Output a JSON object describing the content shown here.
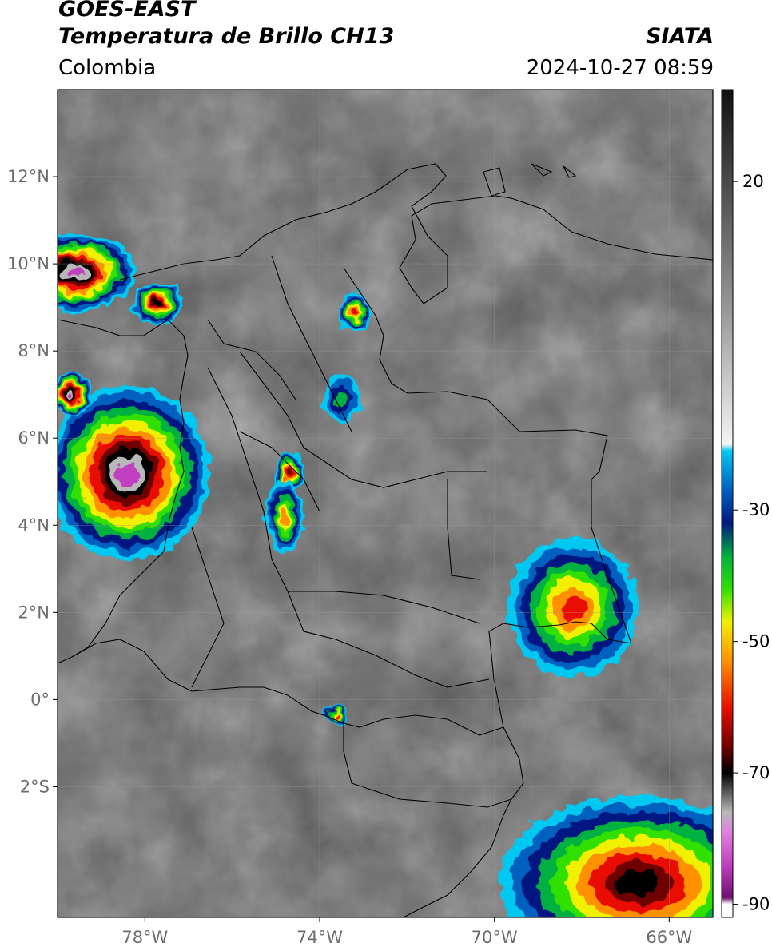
{
  "header": {
    "satellite": "GOES-EAST",
    "product": "Temperatura de Brillo CH13",
    "region": "Colombia",
    "organization": "SIATA",
    "timestamp": "2024-10-27 08:59"
  },
  "map": {
    "lon_range": [
      -80,
      -65
    ],
    "lat_range": [
      -5,
      14
    ],
    "lat_ticks": [
      {
        "value": 12,
        "label": "12°N"
      },
      {
        "value": 10,
        "label": "10°N"
      },
      {
        "value": 8,
        "label": "8°N"
      },
      {
        "value": 6,
        "label": "6°N"
      },
      {
        "value": 4,
        "label": "4°N"
      },
      {
        "value": 2,
        "label": "2°N"
      },
      {
        "value": 0,
        "label": "0°"
      },
      {
        "value": -2,
        "label": "2°S"
      }
    ],
    "lon_ticks": [
      {
        "value": -78,
        "label": "78°W"
      },
      {
        "value": -74,
        "label": "74°W"
      },
      {
        "value": -70,
        "label": "70°W"
      },
      {
        "value": -66,
        "label": "66°W"
      }
    ],
    "grid": true
  },
  "colorbar": {
    "range": [
      -92,
      34
    ],
    "ticks": [
      {
        "value": 20,
        "label": "20"
      },
      {
        "value": -30,
        "label": "-30"
      },
      {
        "value": -50,
        "label": "-50"
      },
      {
        "value": -70,
        "label": "-70"
      },
      {
        "value": -90,
        "label": "-90"
      }
    ],
    "stops": [
      {
        "t": 34,
        "color": "#111111"
      },
      {
        "t": 0,
        "color": "#9a9a9a"
      },
      {
        "t": -20,
        "color": "#f4f4f4"
      },
      {
        "t": -21,
        "color": "#00c8f0"
      },
      {
        "t": -27,
        "color": "#0060c0"
      },
      {
        "t": -32,
        "color": "#001880"
      },
      {
        "t": -37,
        "color": "#00b040"
      },
      {
        "t": -42,
        "color": "#30e000"
      },
      {
        "t": -47,
        "color": "#f0f000"
      },
      {
        "t": -53,
        "color": "#ff9000"
      },
      {
        "t": -60,
        "color": "#e81000"
      },
      {
        "t": -66,
        "color": "#700000"
      },
      {
        "t": -70,
        "color": "#000000"
      },
      {
        "t": -76,
        "color": "#b8b8b8"
      },
      {
        "t": -79,
        "color": "#e080e0"
      },
      {
        "t": -84,
        "color": "#c040c0"
      },
      {
        "t": -89,
        "color": "#701070"
      },
      {
        "t": -90,
        "color": "#ffffff"
      },
      {
        "t": -92,
        "color": "#ffffff"
      }
    ]
  },
  "storms": [
    {
      "name": "pacific-north",
      "lon": -79.6,
      "lat": 9.8,
      "rx": 1.4,
      "ry": 0.9,
      "peak": -82
    },
    {
      "name": "pacific-west",
      "lon": -77.7,
      "lat": 9.1,
      "rx": 0.6,
      "ry": 0.5,
      "peak": -72
    },
    {
      "name": "pacific-main",
      "lon": -78.4,
      "lat": 5.2,
      "rx": 1.9,
      "ry": 2.0,
      "peak": -84
    },
    {
      "name": "pacific-edge",
      "lon": -79.7,
      "lat": 7.0,
      "rx": 0.5,
      "ry": 0.5,
      "peak": -80
    },
    {
      "name": "catatumbo",
      "lon": -73.2,
      "lat": 8.9,
      "rx": 0.35,
      "ry": 0.45,
      "peak": -62
    },
    {
      "name": "magdalena-medio",
      "lon": -73.5,
      "lat": 6.9,
      "rx": 0.45,
      "ry": 0.55,
      "peak": -40
    },
    {
      "name": "tolima",
      "lon": -74.7,
      "lat": 5.2,
      "rx": 0.35,
      "ry": 0.45,
      "peak": -68
    },
    {
      "name": "huila",
      "lon": -74.8,
      "lat": 4.2,
      "rx": 0.45,
      "ry": 0.85,
      "peak": -58
    },
    {
      "name": "guainia",
      "lon": -68.2,
      "lat": 2.1,
      "rx": 1.5,
      "ry": 1.6,
      "peak": -64
    },
    {
      "name": "amazonas-se",
      "lon": -66.7,
      "lat": -4.2,
      "rx": 3.2,
      "ry": 2.0,
      "peak": -70
    },
    {
      "name": "putumayo",
      "lon": -73.6,
      "lat": -0.35,
      "rx": 0.25,
      "ry": 0.22,
      "peak": -64
    }
  ]
}
